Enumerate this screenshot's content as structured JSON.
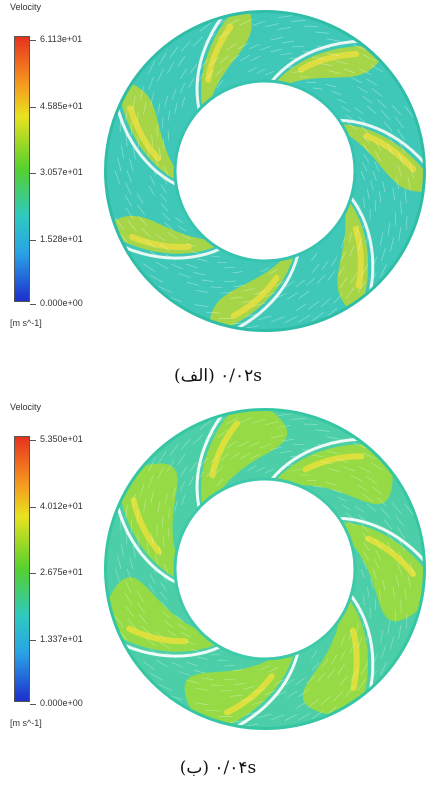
{
  "panels": [
    {
      "legend": {
        "title": "Velocity",
        "ticks": [
          "6.113e+01",
          "4.585e+01",
          "3.057e+01",
          "1.528e+01",
          "0.000e+00"
        ],
        "units": "[m s^-1]"
      },
      "caption": "۰/۰۲s (الف)",
      "field_color": "#3fc8b8",
      "band_color": "#b9d832",
      "band_highlight": "#f0e040"
    },
    {
      "legend": {
        "title": "Velocity",
        "ticks": [
          "5.350e+01",
          "4.012e+01",
          "2.675e+01",
          "1.337e+01",
          "0.000e+00"
        ],
        "units": "[m s^-1]"
      },
      "caption": "۰/۰۴s (ب)",
      "field_color": "#4ccfa8",
      "band_color": "#9fdc3a",
      "band_highlight": "#f2e23a"
    }
  ]
}
